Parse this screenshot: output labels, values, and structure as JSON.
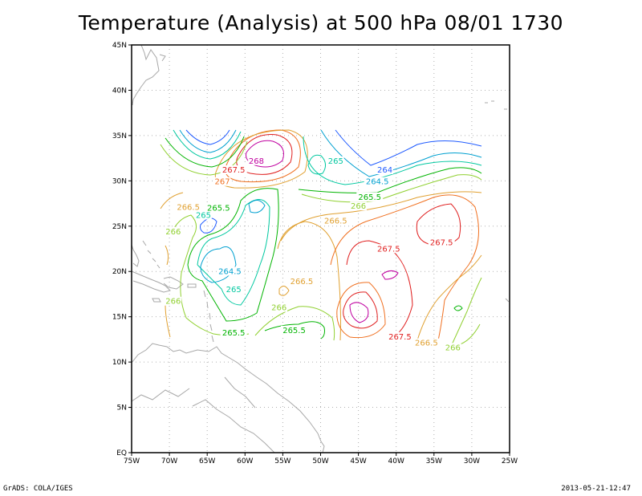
{
  "title": "Temperature (Analysis) at 500 hPa 08/01 1730",
  "footer": {
    "left": "GrADS: COLA/IGES",
    "right": "2013-05-21-12:47"
  },
  "axes": {
    "x_ticks": [
      "75W",
      "70W",
      "65W",
      "60W",
      "55W",
      "50W",
      "45W",
      "40W",
      "35W",
      "30W",
      "25W"
    ],
    "y_ticks": [
      "EQ",
      "5N",
      "10N",
      "15N",
      "20N",
      "25N",
      "30N",
      "35N",
      "40N",
      "45N"
    ],
    "lon_range": [
      -75,
      -25
    ],
    "lat_range": [
      0,
      45
    ],
    "grid": "dotted"
  },
  "colors": {
    "coast": "#a8a8a8",
    "c264": "#1e5aff",
    "c264_5": "#00a0d0",
    "c265": "#00c8a0",
    "c265_5": "#00b400",
    "c266": "#90d030",
    "c266_5": "#e0a030",
    "c267": "#f07020",
    "c267_5": "#e02020",
    "c268": "#c000a0"
  },
  "contour_labels": [
    {
      "text": "268",
      "lon": -58.5,
      "lat": 32.0,
      "color": "#c000a0"
    },
    {
      "text": "267.5",
      "lon": -61.5,
      "lat": 31.0,
      "color": "#e02020"
    },
    {
      "text": "267",
      "lon": -63.0,
      "lat": 29.7,
      "color": "#f07020"
    },
    {
      "text": "265",
      "lon": -48.0,
      "lat": 32.0,
      "color": "#00c8a0"
    },
    {
      "text": "264",
      "lon": -41.5,
      "lat": 31.0,
      "color": "#1e5aff"
    },
    {
      "text": "264.5",
      "lon": -42.5,
      "lat": 29.7,
      "color": "#00a0d0"
    },
    {
      "text": "265.5",
      "lon": -43.5,
      "lat": 28.0,
      "color": "#00b400"
    },
    {
      "text": "266",
      "lon": -45.0,
      "lat": 27.0,
      "color": "#90d030"
    },
    {
      "text": "266.5",
      "lon": -48.0,
      "lat": 25.4,
      "color": "#e0a030"
    },
    {
      "text": "266.5",
      "lon": -67.5,
      "lat": 26.9,
      "color": "#e0a030"
    },
    {
      "text": "265.5",
      "lon": -63.5,
      "lat": 26.8,
      "color": "#00b400"
    },
    {
      "text": "265",
      "lon": -65.5,
      "lat": 26.0,
      "color": "#00c8a0"
    },
    {
      "text": "266",
      "lon": -69.5,
      "lat": 24.2,
      "color": "#90d030"
    },
    {
      "text": "264.5",
      "lon": -62.0,
      "lat": 19.8,
      "color": "#00a0d0"
    },
    {
      "text": "265",
      "lon": -61.5,
      "lat": 17.8,
      "color": "#00c8a0"
    },
    {
      "text": "266.5",
      "lon": -52.5,
      "lat": 18.7,
      "color": "#e0a030"
    },
    {
      "text": "266",
      "lon": -69.5,
      "lat": 16.5,
      "color": "#90d030"
    },
    {
      "text": "266",
      "lon": -55.5,
      "lat": 15.8,
      "color": "#90d030"
    },
    {
      "text": "267.5",
      "lon": -41.0,
      "lat": 22.3,
      "color": "#e02020"
    },
    {
      "text": "267.5",
      "lon": -34.0,
      "lat": 23.0,
      "color": "#e02020"
    },
    {
      "text": "265.5",
      "lon": -61.5,
      "lat": 13.0,
      "color": "#00b400"
    },
    {
      "text": "265.5",
      "lon": -53.5,
      "lat": 13.3,
      "color": "#00b400"
    },
    {
      "text": "267.5",
      "lon": -39.5,
      "lat": 12.6,
      "color": "#e02020"
    },
    {
      "text": "266.5",
      "lon": -36.0,
      "lat": 11.9,
      "color": "#e0a030"
    },
    {
      "text": "266",
      "lon": -32.5,
      "lat": 11.4,
      "color": "#90d030"
    }
  ]
}
